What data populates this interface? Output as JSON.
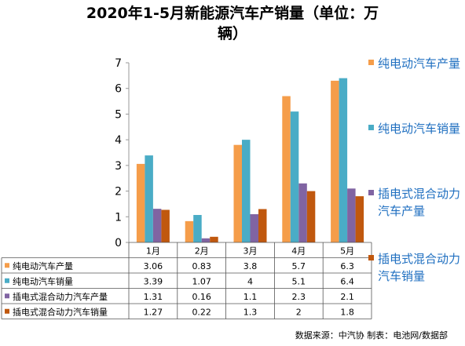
{
  "title_line1": "2020年1-5月新能源汽车产销量（单位：万",
  "title_line2": "辆）",
  "source": "数据来源：中汽协 制表：电池网/数据部",
  "chart_data": {
    "type": "bar",
    "categories": [
      "1月",
      "2月",
      "3月",
      "4月",
      "5月"
    ],
    "ylim": [
      0,
      7
    ],
    "yticks": [
      "0",
      "1",
      "2",
      "3",
      "4",
      "5",
      "6",
      "7"
    ],
    "grid": false,
    "legend_position": "right",
    "series": [
      {
        "name": "纯电动汽车产量",
        "color": "#f59d4a",
        "values": [
          3.06,
          0.83,
          3.8,
          5.7,
          6.3
        ],
        "labels": [
          "3.06",
          "0.83",
          "3.8",
          "5.7",
          "6.3"
        ]
      },
      {
        "name": "纯电动汽车销量",
        "color": "#4aacc6",
        "values": [
          3.39,
          1.07,
          4,
          5.1,
          6.4
        ],
        "labels": [
          "3.39",
          "1.07",
          "4",
          "5.1",
          "6.4"
        ]
      },
      {
        "name": "插电式混合动力汽车产量",
        "color": "#8064a2",
        "values": [
          1.31,
          0.16,
          1.1,
          2.3,
          2.1
        ],
        "labels": [
          "1.31",
          "0.16",
          "1.1",
          "2.3",
          "2.1"
        ]
      },
      {
        "name": "插电式混合动力汽车销量",
        "color": "#c0580e",
        "values": [
          1.27,
          0.22,
          1.3,
          2,
          1.8
        ],
        "labels": [
          "1.27",
          "0.22",
          "1.3",
          "2",
          "1.8"
        ]
      }
    ]
  }
}
